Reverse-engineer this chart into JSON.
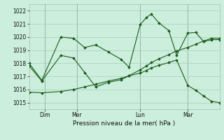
{
  "background_color": "#cceedd",
  "grid_color": "#aaccbb",
  "line_color": "#1a5c1a",
  "ylim": [
    1014.5,
    1022.5
  ],
  "yticks": [
    1015,
    1016,
    1017,
    1018,
    1019,
    1020,
    1021,
    1022
  ],
  "xlabel": "Pression niveau de la mer( hPa )",
  "xtick_labels": [
    "Dim",
    "Mer",
    "Lun",
    "Mar"
  ],
  "xtick_positions": [
    1,
    3,
    7,
    10
  ],
  "xlim": [
    0,
    12
  ],
  "vline_positions": [
    1,
    3,
    7,
    10
  ],
  "series": [
    {
      "x": [
        0,
        0.8,
        2.0,
        2.8,
        3.5,
        4.2,
        5.0,
        5.8,
        6.3,
        7.0,
        7.4,
        7.7,
        8.2,
        8.8,
        9.3,
        10.0,
        10.5,
        11.0,
        11.5,
        12.0
      ],
      "y": [
        1018.0,
        1016.7,
        1020.0,
        1019.9,
        1019.2,
        1019.4,
        1018.85,
        1018.3,
        1017.7,
        1020.95,
        1021.5,
        1021.75,
        1021.05,
        1020.5,
        1018.6,
        1020.3,
        1020.35,
        1019.65,
        1019.8,
        1019.8
      ]
    },
    {
      "x": [
        0,
        0.8,
        2.0,
        2.8,
        3.5,
        4.2,
        5.0,
        5.8,
        6.3,
        7.0,
        7.4,
        7.7,
        8.2,
        8.8,
        9.3,
        10.0,
        10.5,
        11.0,
        11.5,
        12.0
      ],
      "y": [
        1017.8,
        1016.65,
        1018.6,
        1018.4,
        1017.3,
        1016.2,
        1016.55,
        1016.75,
        1017.05,
        1017.5,
        1017.8,
        1018.05,
        1018.35,
        1018.65,
        1018.95,
        1019.2,
        1019.45,
        1019.7,
        1019.9,
        1019.9
      ]
    },
    {
      "x": [
        0,
        0.8,
        2.0,
        2.8,
        3.5,
        4.2,
        5.0,
        5.8,
        6.3,
        7.0,
        7.4,
        7.7,
        8.2,
        8.8,
        9.3,
        10.0,
        10.5,
        11.0,
        11.5,
        12.0
      ],
      "y": [
        1015.8,
        1015.75,
        1015.85,
        1016.0,
        1016.2,
        1016.4,
        1016.65,
        1016.85,
        1017.05,
        1017.25,
        1017.45,
        1017.65,
        1017.85,
        1018.05,
        1018.25,
        1016.3,
        1015.95,
        1015.5,
        1015.1,
        1015.0
      ]
    }
  ]
}
